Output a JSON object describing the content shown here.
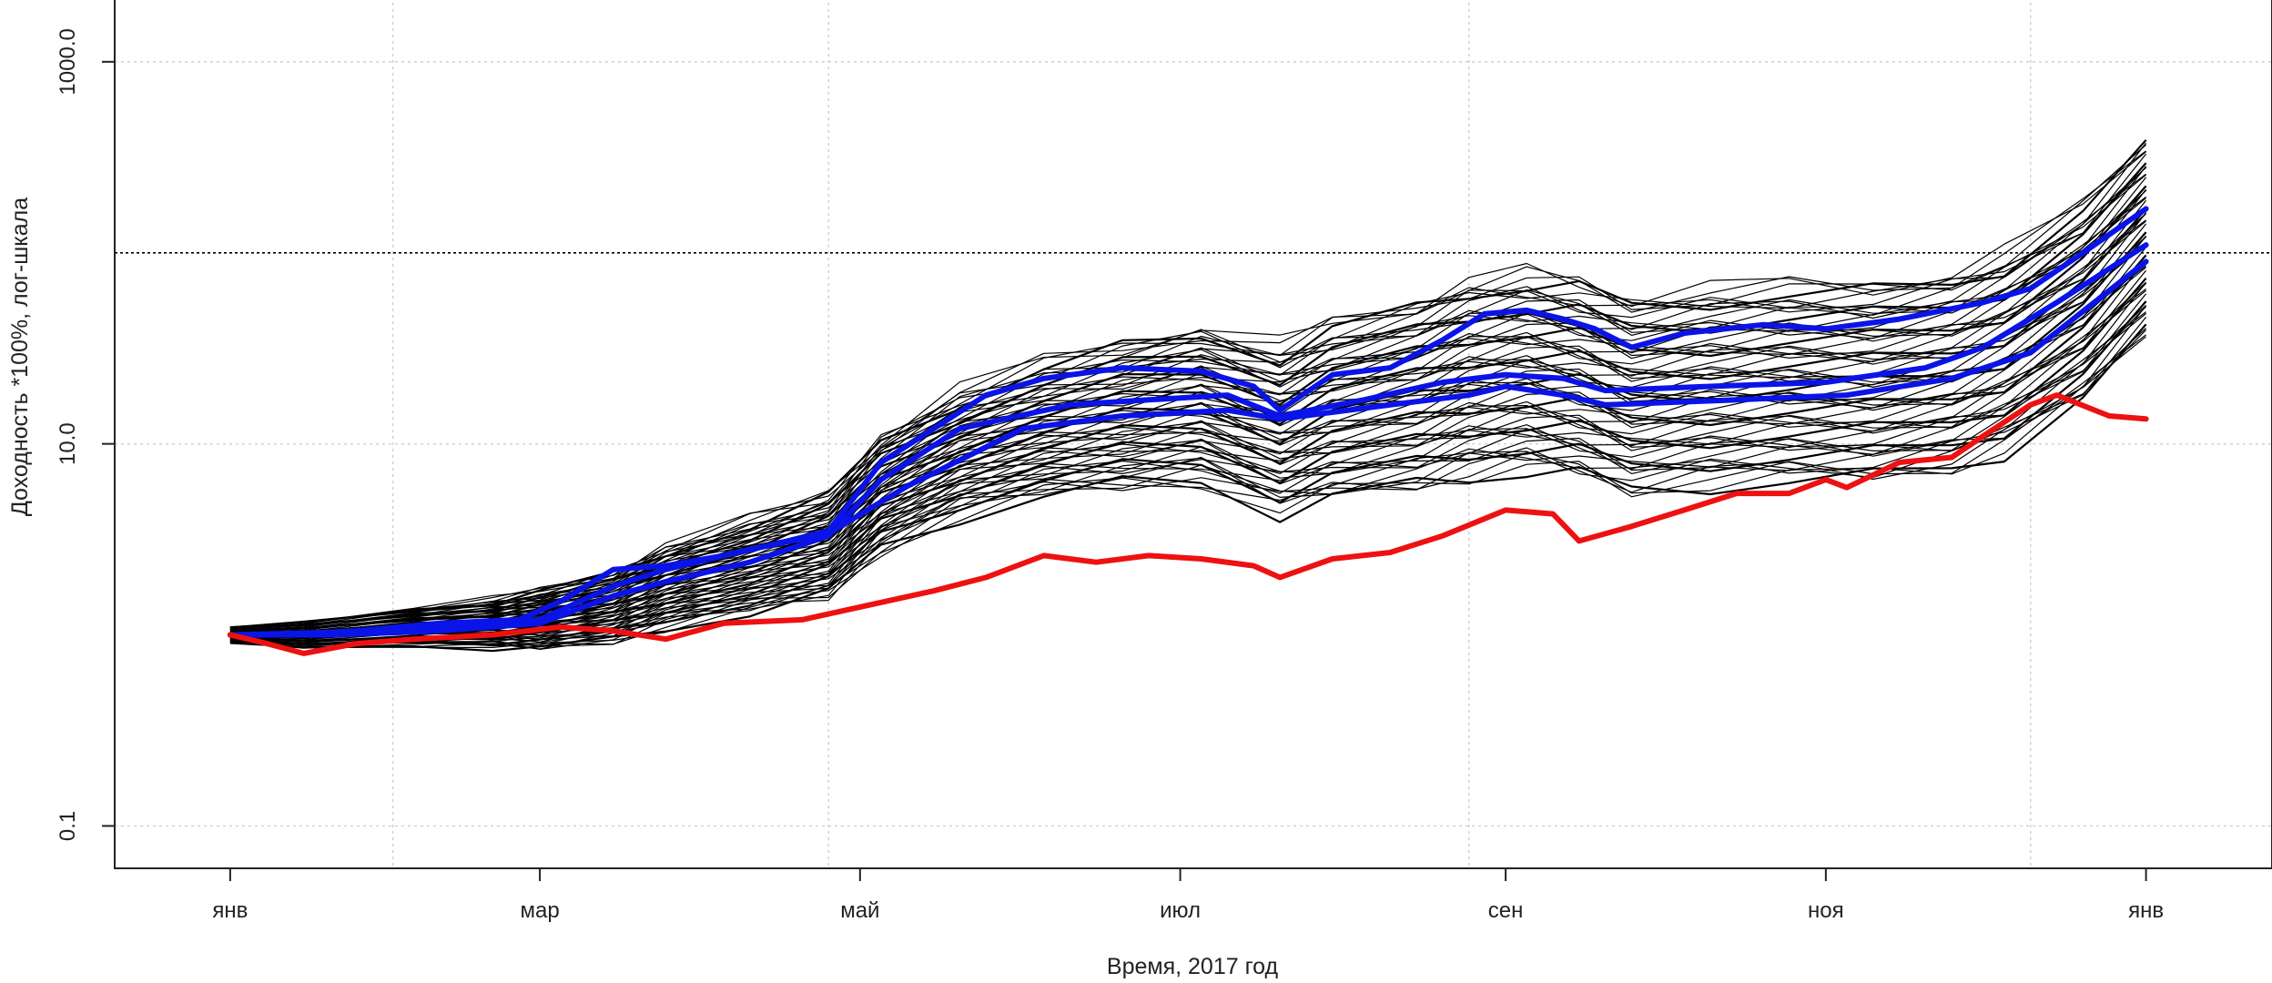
{
  "chart_data": {
    "type": "line",
    "title": "",
    "xlabel": "Время, 2017 год",
    "ylabel": "Доходность *100%, лог-шкала",
    "y_scale": "log",
    "ylim": [
      0.06,
      2200
    ],
    "xlim": [
      "2016-12-10",
      "2018-01-25"
    ],
    "x_ticks": [
      {
        "date": "2017-01-01",
        "label": "янв"
      },
      {
        "date": "2017-03-01",
        "label": "мар"
      },
      {
        "date": "2017-05-01",
        "label": "май"
      },
      {
        "date": "2017-07-01",
        "label": "июл"
      },
      {
        "date": "2017-09-01",
        "label": "сен"
      },
      {
        "date": "2017-11-01",
        "label": "ноя"
      },
      {
        "date": "2018-01-01",
        "label": "янв"
      }
    ],
    "y_ticks": [
      {
        "value": 0.1,
        "label": "0.1"
      },
      {
        "value": 10,
        "label": "10.0"
      },
      {
        "value": 1000,
        "label": "1000.0"
      }
    ],
    "grid": true,
    "reference_line": {
      "y": 100,
      "style": "dotted",
      "color": "#000000"
    },
    "legend": "none",
    "colors": {
      "ensemble": "#000000",
      "highlight": "#0a14e8",
      "benchmark": "#ee1111"
    },
    "series": [
      {
        "role": "benchmark",
        "color": "#ee1111",
        "x": [
          "2017-01-01",
          "2017-01-08",
          "2017-01-15",
          "2017-01-25",
          "2017-02-05",
          "2017-02-20",
          "2017-03-05",
          "2017-03-15",
          "2017-03-25",
          "2017-04-05",
          "2017-04-20",
          "2017-05-01",
          "2017-05-15",
          "2017-05-25",
          "2017-06-05",
          "2017-06-15",
          "2017-06-25",
          "2017-07-05",
          "2017-07-15",
          "2017-07-20",
          "2017-07-30",
          "2017-08-10",
          "2017-08-20",
          "2017-09-01",
          "2017-09-10",
          "2017-09-15",
          "2017-09-25",
          "2017-10-05",
          "2017-10-15",
          "2017-10-25",
          "2017-11-01",
          "2017-11-05",
          "2017-11-15",
          "2017-11-25",
          "2017-12-01",
          "2017-12-10",
          "2017-12-15",
          "2017-12-25",
          "2018-01-01"
        ],
        "y": [
          1.0,
          0.9,
          0.8,
          0.9,
          0.95,
          1.0,
          1.1,
          1.05,
          0.95,
          1.15,
          1.2,
          1.4,
          1.7,
          2.0,
          2.6,
          2.4,
          2.6,
          2.5,
          2.3,
          2.0,
          2.5,
          2.7,
          3.3,
          4.5,
          4.3,
          3.1,
          3.7,
          4.5,
          5.5,
          5.5,
          6.5,
          5.9,
          8.0,
          8.5,
          11.0,
          16.0,
          18.0,
          14.0,
          13.5
        ]
      },
      {
        "role": "highlight",
        "color": "#0a14e8",
        "x": [
          "2017-01-01",
          "2017-01-10",
          "2017-01-25",
          "2017-02-10",
          "2017-02-25",
          "2017-03-05",
          "2017-03-15",
          "2017-03-25",
          "2017-04-05",
          "2017-04-15",
          "2017-04-25",
          "2017-05-05",
          "2017-05-15",
          "2017-05-25",
          "2017-06-05",
          "2017-06-20",
          "2017-07-05",
          "2017-07-15",
          "2017-07-20",
          "2017-07-30",
          "2017-08-10",
          "2017-08-20",
          "2017-08-28",
          "2017-09-05",
          "2017-09-12",
          "2017-09-18",
          "2017-09-25",
          "2017-10-05",
          "2017-10-20",
          "2017-11-01",
          "2017-11-15",
          "2017-12-01",
          "2017-12-10",
          "2017-12-20",
          "2018-01-01"
        ],
        "y": [
          1.0,
          1.0,
          1.05,
          1.15,
          1.2,
          1.5,
          2.2,
          2.3,
          2.6,
          3.0,
          3.5,
          8.0,
          12.0,
          18.0,
          22.0,
          25.0,
          24.0,
          20.0,
          15.0,
          23.0,
          25.0,
          35.0,
          48.0,
          50.0,
          45.0,
          40.0,
          32.0,
          38.0,
          42.0,
          40.0,
          45.0,
          55.0,
          65.0,
          100.0,
          170.0
        ]
      },
      {
        "role": "highlight",
        "color": "#0a14e8",
        "x": [
          "2017-01-01",
          "2017-01-20",
          "2017-02-10",
          "2017-03-01",
          "2017-03-15",
          "2017-03-25",
          "2017-04-10",
          "2017-04-25",
          "2017-05-05",
          "2017-05-20",
          "2017-06-10",
          "2017-06-25",
          "2017-07-10",
          "2017-07-20",
          "2017-08-05",
          "2017-08-20",
          "2017-09-01",
          "2017-09-12",
          "2017-09-20",
          "2017-10-10",
          "2017-11-01",
          "2017-11-20",
          "2017-12-01",
          "2017-12-15",
          "2018-01-01"
        ],
        "y": [
          1.0,
          1.0,
          1.05,
          1.15,
          1.6,
          1.9,
          2.4,
          3.3,
          6.5,
          12.0,
          16.0,
          17.0,
          18.0,
          14.0,
          17.0,
          21.0,
          23.0,
          22.0,
          19.0,
          20.0,
          21.0,
          25.0,
          32.0,
          55.0,
          110.0
        ]
      },
      {
        "role": "highlight",
        "color": "#0a14e8",
        "x": [
          "2017-01-01",
          "2017-02-01",
          "2017-03-01",
          "2017-03-15",
          "2017-03-25",
          "2017-04-10",
          "2017-04-25",
          "2017-05-10",
          "2017-06-01",
          "2017-06-20",
          "2017-07-10",
          "2017-07-20",
          "2017-08-10",
          "2017-08-25",
          "2017-09-01",
          "2017-09-12",
          "2017-09-20",
          "2017-10-15",
          "2017-11-05",
          "2017-11-25",
          "2017-12-10",
          "2018-01-01"
        ],
        "y": [
          1.0,
          1.05,
          1.2,
          1.8,
          2.2,
          2.8,
          3.4,
          6.0,
          12.0,
          14.0,
          15.0,
          13.5,
          16.0,
          18.0,
          20.0,
          18.0,
          16.0,
          17.0,
          18.0,
          22.0,
          30.0,
          90.0
        ]
      },
      {
        "role": "ensemble",
        "color": "#000000",
        "x": [
          "2017-01-01",
          "2017-01-15",
          "2017-02-05",
          "2017-02-20",
          "2017-03-01",
          "2017-03-15",
          "2017-03-25",
          "2017-04-10",
          "2017-04-25",
          "2017-05-05",
          "2017-05-20",
          "2017-06-05",
          "2017-06-20",
          "2017-07-05",
          "2017-07-20",
          "2017-07-30",
          "2017-08-15",
          "2017-08-25",
          "2017-09-05",
          "2017-09-15",
          "2017-09-25",
          "2017-10-10",
          "2017-10-25",
          "2017-11-10",
          "2017-11-25",
          "2017-12-05",
          "2017-12-20",
          "2018-01-01"
        ],
        "y": [
          1.0,
          1.0,
          1.1,
          1.15,
          1.2,
          1.4,
          1.8,
          2.3,
          2.9,
          5.5,
          9.0,
          12.0,
          14.0,
          16.0,
          12.0,
          15.0,
          18.0,
          22.0,
          24.0,
          22.0,
          18.0,
          20.0,
          21.0,
          21.0,
          24.0,
          30.0,
          55.0,
          120.0
        ]
      }
    ]
  }
}
